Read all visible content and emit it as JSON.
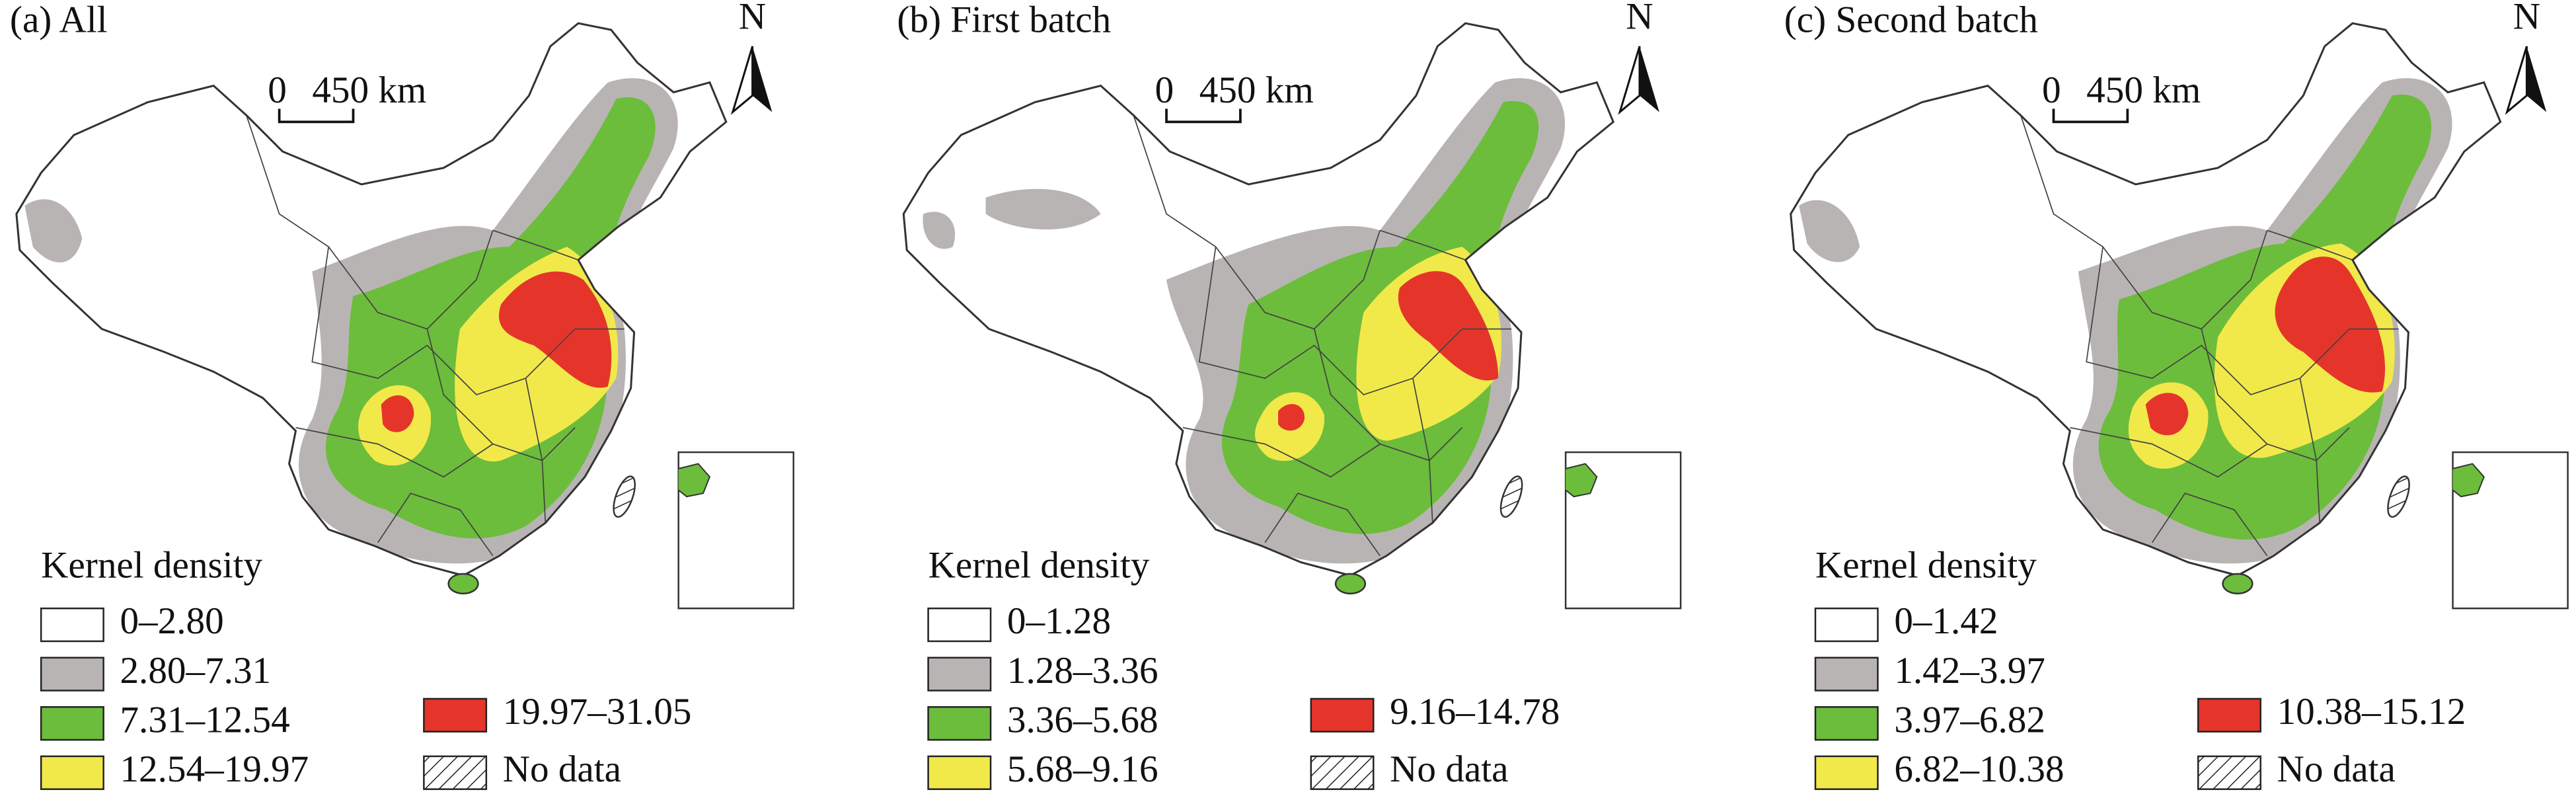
{
  "panels": [
    {
      "title": "(a) All",
      "scale_zero": "0",
      "scale_length": "450 km",
      "north": "N",
      "legend_title": "Kernel density",
      "legend": [
        {
          "label": "0–2.80",
          "color": "#ffffff"
        },
        {
          "label": "2.80–7.31",
          "color": "#b9b4b4"
        },
        {
          "label": "7.31–12.54",
          "color": "#6cbd3b"
        },
        {
          "label": "12.54–19.97",
          "color": "#f1e94a"
        },
        {
          "label": "19.97–31.05",
          "color": "#e5352b"
        },
        {
          "label": "No data",
          "hatched": true
        }
      ]
    },
    {
      "title": "(b) First batch",
      "scale_zero": "0",
      "scale_length": "450 km",
      "north": "N",
      "legend_title": "Kernel density",
      "legend": [
        {
          "label": "0–1.28",
          "color": "#ffffff"
        },
        {
          "label": "1.28–3.36",
          "color": "#b9b4b4"
        },
        {
          "label": "3.36–5.68",
          "color": "#6cbd3b"
        },
        {
          "label": "5.68–9.16",
          "color": "#f1e94a"
        },
        {
          "label": "9.16–14.78",
          "color": "#e5352b"
        },
        {
          "label": "No data",
          "hatched": true
        }
      ]
    },
    {
      "title": "(c) Second batch",
      "scale_zero": "0",
      "scale_length": "450 km",
      "north": "N",
      "legend_title": "Kernel density",
      "legend": [
        {
          "label": "0–1.42",
          "color": "#ffffff"
        },
        {
          "label": "1.42–3.97",
          "color": "#b9b4b4"
        },
        {
          "label": "3.97–6.82",
          "color": "#6cbd3b"
        },
        {
          "label": "6.82–10.38",
          "color": "#f1e94a"
        },
        {
          "label": "10.38–15.12",
          "color": "#e5352b"
        },
        {
          "label": "No data",
          "hatched": true
        }
      ]
    }
  ]
}
